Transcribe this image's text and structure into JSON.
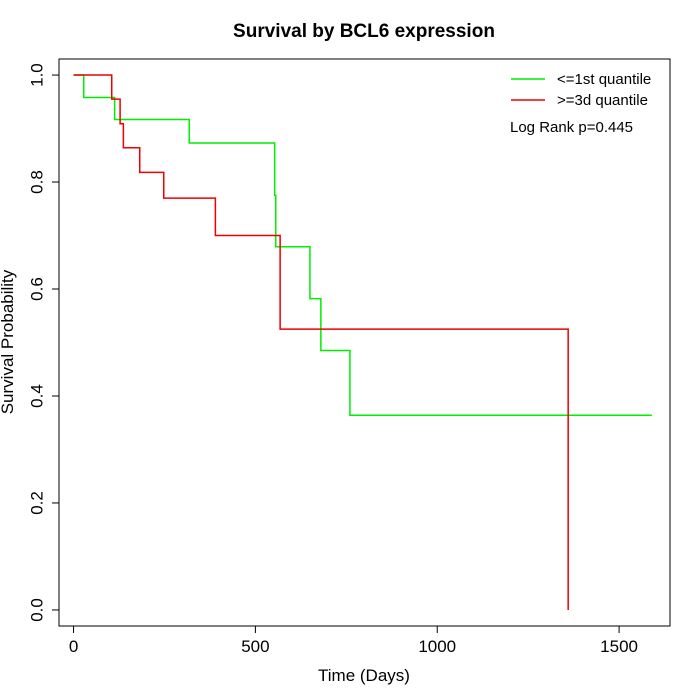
{
  "chart_data": {
    "type": "line",
    "title": "Survival by BCL6 expression",
    "xlabel": "Time (Days)",
    "ylabel": "Survival Probability",
    "xlim": [
      -40,
      1640
    ],
    "ylim": [
      -0.03,
      1.03
    ],
    "x_ticks": [
      0,
      500,
      1000,
      1500
    ],
    "x_tick_labels": [
      "0",
      "500",
      "1000",
      "1500"
    ],
    "y_ticks": [
      0.0,
      0.2,
      0.4,
      0.6,
      0.8,
      1.0
    ],
    "y_tick_labels": [
      "0.0",
      "0.2",
      "0.4",
      "0.6",
      "0.8",
      "1.0"
    ],
    "grid": false,
    "legend_position": "top-right",
    "annotation": "Log Rank p=0.445",
    "series": [
      {
        "name": "<=1st quantile",
        "color": "#00ee00",
        "step": true,
        "x": [
          0,
          28,
          113,
          318,
          553,
          556,
          650,
          680,
          760,
          1590
        ],
        "y": [
          1.0,
          0.958,
          0.917,
          0.873,
          0.775,
          0.679,
          0.582,
          0.485,
          0.364,
          0.364
        ]
      },
      {
        "name": ">=3d quantile",
        "color": "#ee0000",
        "step": true,
        "x": [
          0,
          105,
          128,
          137,
          182,
          248,
          390,
          568,
          1360
        ],
        "y": [
          1.0,
          0.955,
          0.909,
          0.864,
          0.818,
          0.77,
          0.7,
          0.525,
          0.0
        ]
      }
    ]
  }
}
